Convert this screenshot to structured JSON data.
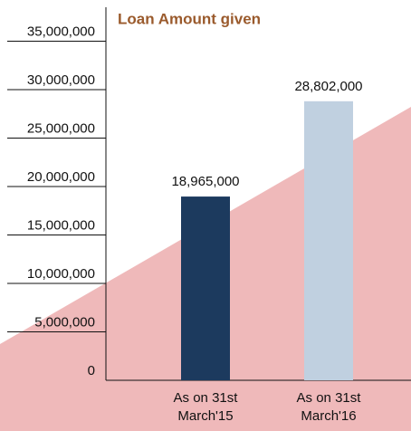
{
  "chart_data": {
    "type": "bar",
    "title": "Loan Amount given",
    "categories": [
      "As on 31st March'15",
      "As on 31st March'16"
    ],
    "values": [
      18965000,
      28802000
    ],
    "value_labels": [
      "18,965,000",
      "28,802,000"
    ],
    "colors": [
      "#1c3a5e",
      "#c0d0e0"
    ],
    "ylim": [
      0,
      35000000
    ],
    "yticks": [
      0,
      {
        "value": 5000000,
        "label": "5,000,000"
      },
      {
        "value": 10000000,
        "label": "10,000,000"
      },
      {
        "value": 15000000,
        "label": "15,000,000"
      },
      {
        "value": 20000000,
        "label": "20,000,000"
      },
      {
        "value": 25000000,
        "label": "25,000,000"
      },
      {
        "value": 30000000,
        "label": "30,000,000"
      },
      {
        "value": 35000000,
        "label": "35,000,000"
      }
    ],
    "grid": true
  }
}
